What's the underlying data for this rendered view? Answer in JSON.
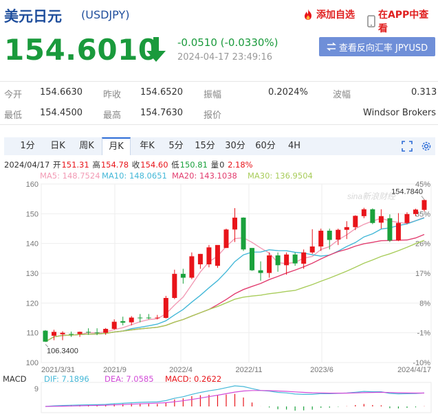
{
  "header": {
    "title": "美元日元",
    "symbol": "(USDJPY)",
    "favorite_label": "添加自选",
    "app_label": "在APP中查看"
  },
  "quote": {
    "price": "154.6010",
    "change": "-0.0510 (-0.0330%)",
    "timestamp": "2024-04-17 23:49:16",
    "reverse_button": "查看反向汇率 JPYUSD"
  },
  "stats": {
    "open_label": "今开",
    "open": "154.6630",
    "prev_close_label": "昨收",
    "prev_close": "154.6520",
    "amplitude_label": "振幅",
    "amplitude": "0.2024%",
    "wave_label": "波幅",
    "wave": "0.313",
    "low_label": "最低",
    "low": "154.4500",
    "high_label": "最高",
    "high": "154.7630",
    "quote_label": "报价",
    "quote": "Windsor Brokers"
  },
  "tabs": [
    "1分",
    "日K",
    "周K",
    "月K",
    "年K",
    "5分",
    "15分",
    "30分",
    "60分",
    "4H"
  ],
  "active_tab": "月K",
  "candle_info": {
    "date": "2024/04/17",
    "open_label": "开",
    "open": "151.31",
    "high_label": "高",
    "high": "154.78",
    "close_label": "收",
    "close": "154.60",
    "low_label": "低",
    "low": "150.81",
    "vol_label": "量",
    "vol": "0",
    "pct": "2.18%"
  },
  "ma_labels": {
    "ma5": "MA5: 148.7524",
    "ma10": "MA10: 148.0651",
    "ma20": "MA20: 143.1038",
    "ma30": "MA30: 136.9504"
  },
  "macd_labels": {
    "macd_title": "MACD",
    "dif": "DIF: 7.1896",
    "dea": "DEA: 7.0585",
    "macd": "MACD: 0.2622",
    "axis_value": "9"
  },
  "colors": {
    "up": "#e8141a",
    "down": "#1aa13c",
    "ma5": "#f29bb5",
    "ma10": "#44b8d8",
    "ma20": "#e23d6f",
    "ma30": "#a8cc5a",
    "accent": "#1f4e9c"
  },
  "chart_data": {
    "type": "candlestick",
    "y_axis_left": [
      "160",
      "150",
      "140",
      "130",
      "120",
      "110",
      "100"
    ],
    "y_axis_right": [
      "45%",
      "35%",
      "26%",
      "17%",
      "8%",
      "-1%",
      "-10%"
    ],
    "x_labels": [
      "2021/3/31",
      "2021/9",
      "2022/4",
      "2022/11",
      "2023/6",
      "2024/4/17"
    ],
    "ylim": [
      100,
      160
    ],
    "max_label": "154.7840",
    "min_label": "106.3400",
    "watermark": "sina新浪财经",
    "candles": [
      {
        "o": 110.7,
        "h": 110.9,
        "l": 107.5,
        "c": 107.0
      },
      {
        "o": 109.0,
        "h": 111.0,
        "l": 107.5,
        "c": 110.3
      },
      {
        "o": 109.5,
        "h": 110.5,
        "l": 107.5,
        "c": 110.0
      },
      {
        "o": 109.6,
        "h": 110.4,
        "l": 108.6,
        "c": 109.5
      },
      {
        "o": 109.6,
        "h": 110.4,
        "l": 108.6,
        "c": 110.3
      },
      {
        "o": 110.3,
        "h": 111.5,
        "l": 109.3,
        "c": 110.1
      },
      {
        "o": 110.1,
        "h": 111.5,
        "l": 109.2,
        "c": 110.0
      },
      {
        "o": 110.0,
        "h": 111.6,
        "l": 109.3,
        "c": 111.3
      },
      {
        "o": 111.3,
        "h": 114.5,
        "l": 111.0,
        "c": 113.7
      },
      {
        "o": 113.9,
        "h": 115.4,
        "l": 112.5,
        "c": 113.4
      },
      {
        "o": 113.5,
        "h": 115.6,
        "l": 112.5,
        "c": 115.1
      },
      {
        "o": 115.1,
        "h": 116.3,
        "l": 113.5,
        "c": 115.0
      },
      {
        "o": 115.1,
        "h": 116.3,
        "l": 114.5,
        "c": 114.9
      },
      {
        "o": 115.0,
        "h": 116.0,
        "l": 114.5,
        "c": 115.1
      },
      {
        "o": 115.0,
        "h": 122.4,
        "l": 114.8,
        "c": 121.7
      },
      {
        "o": 121.7,
        "h": 131.2,
        "l": 121.3,
        "c": 129.8
      },
      {
        "o": 129.8,
        "h": 131.5,
        "l": 126.5,
        "c": 128.5
      },
      {
        "o": 128.5,
        "h": 137.0,
        "l": 128.0,
        "c": 135.7
      },
      {
        "o": 133.0,
        "h": 136.5,
        "l": 131.5,
        "c": 136.5
      },
      {
        "o": 133.0,
        "h": 139.5,
        "l": 132.0,
        "c": 138.7
      },
      {
        "o": 132.5,
        "h": 139.0,
        "l": 131.8,
        "c": 139.5
      },
      {
        "o": 138.5,
        "h": 145.0,
        "l": 138.5,
        "c": 144.7
      },
      {
        "o": 144.7,
        "h": 151.9,
        "l": 140.5,
        "c": 148.7
      },
      {
        "o": 148.7,
        "h": 148.8,
        "l": 137.5,
        "c": 138.0
      },
      {
        "o": 138.5,
        "h": 138.5,
        "l": 130.8,
        "c": 131.0
      },
      {
        "o": 131.0,
        "h": 134.0,
        "l": 127.5,
        "c": 130.1
      },
      {
        "o": 130.1,
        "h": 137.0,
        "l": 128.5,
        "c": 136.0
      },
      {
        "o": 136.0,
        "h": 137.0,
        "l": 130.5,
        "c": 132.7
      },
      {
        "o": 132.7,
        "h": 137.0,
        "l": 129.5,
        "c": 136.3
      },
      {
        "o": 136.3,
        "h": 137.0,
        "l": 132.5,
        "c": 133.3
      },
      {
        "o": 133.2,
        "h": 138.0,
        "l": 131.5,
        "c": 137.0
      },
      {
        "o": 137.0,
        "h": 144.8,
        "l": 136.5,
        "c": 139.0
      },
      {
        "o": 139.0,
        "h": 145.0,
        "l": 137.5,
        "c": 144.3
      },
      {
        "o": 144.3,
        "h": 145.0,
        "l": 138.0,
        "c": 141.2
      },
      {
        "o": 141.3,
        "h": 145.0,
        "l": 139.5,
        "c": 144.6
      },
      {
        "o": 144.6,
        "h": 147.5,
        "l": 141.5,
        "c": 145.5
      },
      {
        "o": 145.5,
        "h": 149.5,
        "l": 144.5,
        "c": 149.3
      },
      {
        "o": 149.2,
        "h": 152.0,
        "l": 148.5,
        "c": 151.5
      },
      {
        "o": 151.5,
        "h": 151.8,
        "l": 146.5,
        "c": 146.9
      },
      {
        "o": 147.0,
        "h": 151.5,
        "l": 145.0,
        "c": 149.2
      },
      {
        "o": 148.5,
        "h": 149.8,
        "l": 140.5,
        "c": 141.0
      },
      {
        "o": 141.0,
        "h": 150.2,
        "l": 140.8,
        "c": 146.9
      },
      {
        "o": 146.9,
        "h": 150.5,
        "l": 146.5,
        "c": 149.9
      },
      {
        "o": 149.9,
        "h": 151.7,
        "l": 149.2,
        "c": 151.4
      },
      {
        "o": 151.3,
        "h": 154.8,
        "l": 150.8,
        "c": 154.6
      }
    ]
  }
}
